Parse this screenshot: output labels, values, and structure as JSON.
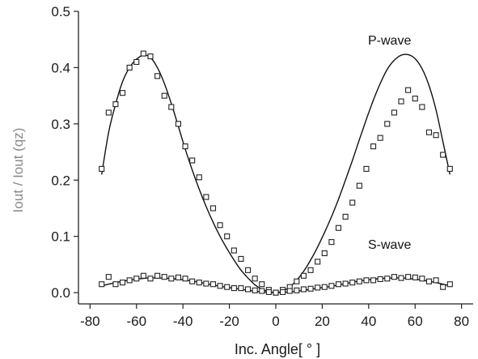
{
  "chart_data": {
    "type": "scatter",
    "title": "",
    "xlabel": "Inc. Angle[ ° ]",
    "ylabel": "Iout / Iout (qz)",
    "xlim": [
      -85,
      85
    ],
    "ylim": [
      -0.02,
      0.5
    ],
    "x_ticks": [
      -80,
      -60,
      -40,
      -20,
      0,
      20,
      40,
      60,
      80
    ],
    "x_tick_labels": [
      "-80",
      "-60",
      "-40",
      "-20",
      "0",
      "20",
      "40",
      "60",
      "80"
    ],
    "y_ticks": [
      0.0,
      0.1,
      0.2,
      0.3,
      0.4,
      0.5
    ],
    "y_tick_labels": [
      "0.0",
      "0.1",
      "0.2",
      "0.3",
      "0.4",
      "0.5"
    ],
    "grid": false,
    "annotations": [
      "P-wave",
      "S-wave"
    ],
    "series": [
      {
        "name": "P-wave",
        "kind": "markers",
        "marker": "square",
        "points": [
          [
            -75,
            0.22
          ],
          [
            -72,
            0.32
          ],
          [
            -69,
            0.335
          ],
          [
            -66,
            0.355
          ],
          [
            -63,
            0.4
          ],
          [
            -60,
            0.41
          ],
          [
            -57,
            0.425
          ],
          [
            -54,
            0.42
          ],
          [
            -51,
            0.385
          ],
          [
            -48,
            0.35
          ],
          [
            -45,
            0.33
          ],
          [
            -42,
            0.3
          ],
          [
            -39,
            0.26
          ],
          [
            -36,
            0.235
          ],
          [
            -33,
            0.205
          ],
          [
            -30,
            0.17
          ],
          [
            -27,
            0.15
          ],
          [
            -24,
            0.12
          ],
          [
            -21,
            0.1
          ],
          [
            -18,
            0.075
          ],
          [
            -15,
            0.06
          ],
          [
            -12,
            0.04
          ],
          [
            -9,
            0.025
          ],
          [
            -6,
            0.015
          ],
          [
            -3,
            0.005
          ],
          [
            0,
            0.0
          ],
          [
            3,
            0.005
          ],
          [
            6,
            0.01
          ],
          [
            9,
            0.02
          ],
          [
            12,
            0.03
          ],
          [
            15,
            0.04
          ],
          [
            18,
            0.055
          ],
          [
            21,
            0.07
          ],
          [
            24,
            0.09
          ],
          [
            27,
            0.115
          ],
          [
            30,
            0.135
          ],
          [
            33,
            0.16
          ],
          [
            36,
            0.19
          ],
          [
            39,
            0.22
          ],
          [
            42,
            0.26
          ],
          [
            45,
            0.275
          ],
          [
            48,
            0.3
          ],
          [
            51,
            0.32
          ],
          [
            54,
            0.34
          ],
          [
            57,
            0.36
          ],
          [
            60,
            0.345
          ],
          [
            63,
            0.33
          ],
          [
            66,
            0.285
          ],
          [
            69,
            0.28
          ],
          [
            72,
            0.245
          ],
          [
            75,
            0.22
          ]
        ]
      },
      {
        "name": "P-wave",
        "kind": "line",
        "points": [
          [
            -75,
            0.21
          ],
          [
            -72,
            0.285
          ],
          [
            -69,
            0.335
          ],
          [
            -66,
            0.375
          ],
          [
            -63,
            0.4
          ],
          [
            -60,
            0.415
          ],
          [
            -57,
            0.422
          ],
          [
            -54,
            0.418
          ],
          [
            -51,
            0.4
          ],
          [
            -48,
            0.372
          ],
          [
            -45,
            0.336
          ],
          [
            -42,
            0.296
          ],
          [
            -39,
            0.255
          ],
          [
            -36,
            0.218
          ],
          [
            -33,
            0.184
          ],
          [
            -30,
            0.153
          ],
          [
            -27,
            0.125
          ],
          [
            -24,
            0.1
          ],
          [
            -21,
            0.078
          ],
          [
            -18,
            0.058
          ],
          [
            -15,
            0.04
          ],
          [
            -12,
            0.026
          ],
          [
            -9,
            0.014
          ],
          [
            -6,
            0.006
          ],
          [
            -3,
            0.002
          ],
          [
            0,
            0.0
          ],
          [
            3,
            0.003
          ],
          [
            6,
            0.01
          ],
          [
            9,
            0.022
          ],
          [
            12,
            0.038
          ],
          [
            15,
            0.058
          ],
          [
            18,
            0.081
          ],
          [
            21,
            0.107
          ],
          [
            24,
            0.135
          ],
          [
            27,
            0.166
          ],
          [
            30,
            0.2
          ],
          [
            33,
            0.235
          ],
          [
            36,
            0.272
          ],
          [
            39,
            0.308
          ],
          [
            42,
            0.342
          ],
          [
            45,
            0.372
          ],
          [
            48,
            0.397
          ],
          [
            51,
            0.413
          ],
          [
            54,
            0.422
          ],
          [
            57,
            0.423
          ],
          [
            60,
            0.416
          ],
          [
            63,
            0.398
          ],
          [
            66,
            0.368
          ],
          [
            69,
            0.325
          ],
          [
            72,
            0.268
          ],
          [
            75,
            0.21
          ]
        ]
      },
      {
        "name": "S-wave",
        "kind": "markers",
        "marker": "square",
        "points": [
          [
            -75,
            0.015
          ],
          [
            -72,
            0.028
          ],
          [
            -69,
            0.015
          ],
          [
            -66,
            0.018
          ],
          [
            -63,
            0.022
          ],
          [
            -60,
            0.025
          ],
          [
            -57,
            0.03
          ],
          [
            -54,
            0.025
          ],
          [
            -51,
            0.03
          ],
          [
            -48,
            0.028
          ],
          [
            -45,
            0.025
          ],
          [
            -42,
            0.027
          ],
          [
            -39,
            0.025
          ],
          [
            -36,
            0.02
          ],
          [
            -33,
            0.018
          ],
          [
            -30,
            0.016
          ],
          [
            -27,
            0.015
          ],
          [
            -24,
            0.012
          ],
          [
            -21,
            0.01
          ],
          [
            -18,
            0.008
          ],
          [
            -15,
            0.008
          ],
          [
            -12,
            0.006
          ],
          [
            -9,
            0.004
          ],
          [
            -6,
            0.003
          ],
          [
            -3,
            0.001
          ],
          [
            0,
            0.0
          ],
          [
            3,
            0.001
          ],
          [
            6,
            0.003
          ],
          [
            9,
            0.004
          ],
          [
            12,
            0.006
          ],
          [
            15,
            0.007
          ],
          [
            18,
            0.009
          ],
          [
            21,
            0.01
          ],
          [
            24,
            0.012
          ],
          [
            27,
            0.015
          ],
          [
            30,
            0.016
          ],
          [
            33,
            0.018
          ],
          [
            36,
            0.02
          ],
          [
            39,
            0.022
          ],
          [
            42,
            0.022
          ],
          [
            45,
            0.024
          ],
          [
            48,
            0.025
          ],
          [
            51,
            0.028
          ],
          [
            54,
            0.026
          ],
          [
            57,
            0.028
          ],
          [
            60,
            0.027
          ],
          [
            63,
            0.025
          ],
          [
            66,
            0.02
          ],
          [
            69,
            0.022
          ],
          [
            72,
            0.01
          ],
          [
            75,
            0.015
          ]
        ]
      },
      {
        "name": "S-wave",
        "kind": "line",
        "points": [
          [
            -75,
            0.012
          ],
          [
            -70,
            0.017
          ],
          [
            -65,
            0.021
          ],
          [
            -60,
            0.024
          ],
          [
            -55,
            0.026
          ],
          [
            -50,
            0.026
          ],
          [
            -45,
            0.025
          ],
          [
            -40,
            0.023
          ],
          [
            -35,
            0.02
          ],
          [
            -30,
            0.016
          ],
          [
            -25,
            0.012
          ],
          [
            -20,
            0.009
          ],
          [
            -15,
            0.006
          ],
          [
            -10,
            0.003
          ],
          [
            -5,
            0.001
          ],
          [
            0,
            0.0
          ],
          [
            5,
            0.001
          ],
          [
            10,
            0.003
          ],
          [
            15,
            0.006
          ],
          [
            20,
            0.009
          ],
          [
            25,
            0.012
          ],
          [
            30,
            0.016
          ],
          [
            35,
            0.02
          ],
          [
            40,
            0.023
          ],
          [
            45,
            0.025
          ],
          [
            50,
            0.026
          ],
          [
            55,
            0.026
          ],
          [
            60,
            0.024
          ],
          [
            65,
            0.021
          ],
          [
            70,
            0.017
          ],
          [
            75,
            0.012
          ]
        ]
      }
    ]
  }
}
